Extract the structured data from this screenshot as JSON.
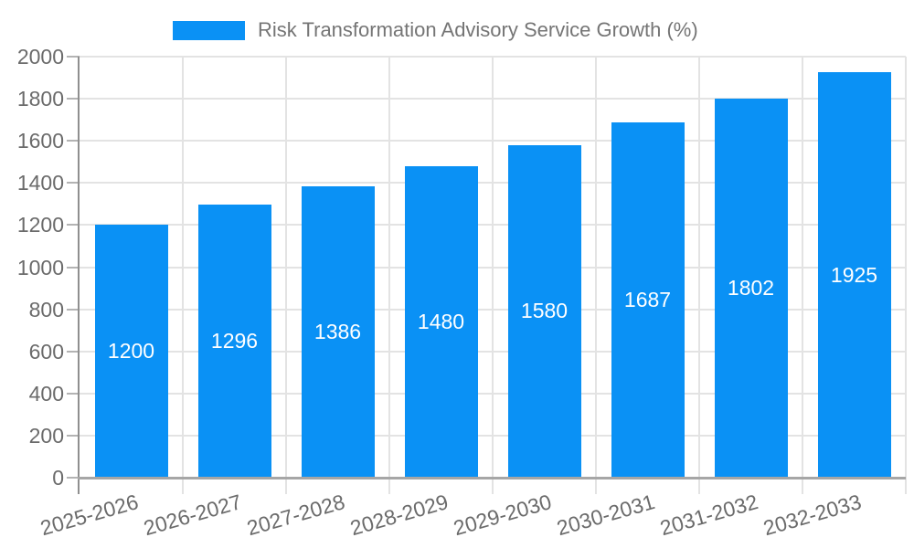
{
  "legend": {
    "label": "Risk Transformation Advisory Service Growth (%)",
    "swatch_color": "#0a91f5"
  },
  "chart_data": {
    "type": "bar",
    "title": "Risk Transformation Advisory Service Growth (%)",
    "legend_position": "top",
    "categories": [
      "2025-2026",
      "2026-2027",
      "2027-2028",
      "2028-2029",
      "2029-2030",
      "2030-2031",
      "2031-2032",
      "2032-2033"
    ],
    "series": [
      {
        "name": "Risk Transformation Advisory Service Growth (%)",
        "values": [
          1200,
          1296,
          1386,
          1480,
          1580,
          1687,
          1802,
          1925
        ]
      }
    ],
    "values": [
      1200,
      1296,
      1386,
      1480,
      1580,
      1687,
      1802,
      1925
    ],
    "value_labels": [
      "1200",
      "1296",
      "1386",
      "1480",
      "1580",
      "1687",
      "1802",
      "1925"
    ],
    "xlabel": "",
    "ylabel": "",
    "ylim": [
      0,
      2000
    ],
    "yticks": [
      0,
      200,
      400,
      600,
      800,
      1000,
      1200,
      1400,
      1600,
      1800,
      2000
    ],
    "grid": true,
    "bar_color": "#0a91f5",
    "bar_label_color": "#ffffff",
    "x_label_rotation_deg": -16
  },
  "style": {
    "background": "#ffffff",
    "grid_color": "#e3e3e3",
    "axis_line_color": "#8f8f8f",
    "x_axis_line_color": "#a6a6a6",
    "tick_color": "#b3b3b3",
    "axis_text_color": "#6b6b6b",
    "legend_text_color": "#757575"
  }
}
